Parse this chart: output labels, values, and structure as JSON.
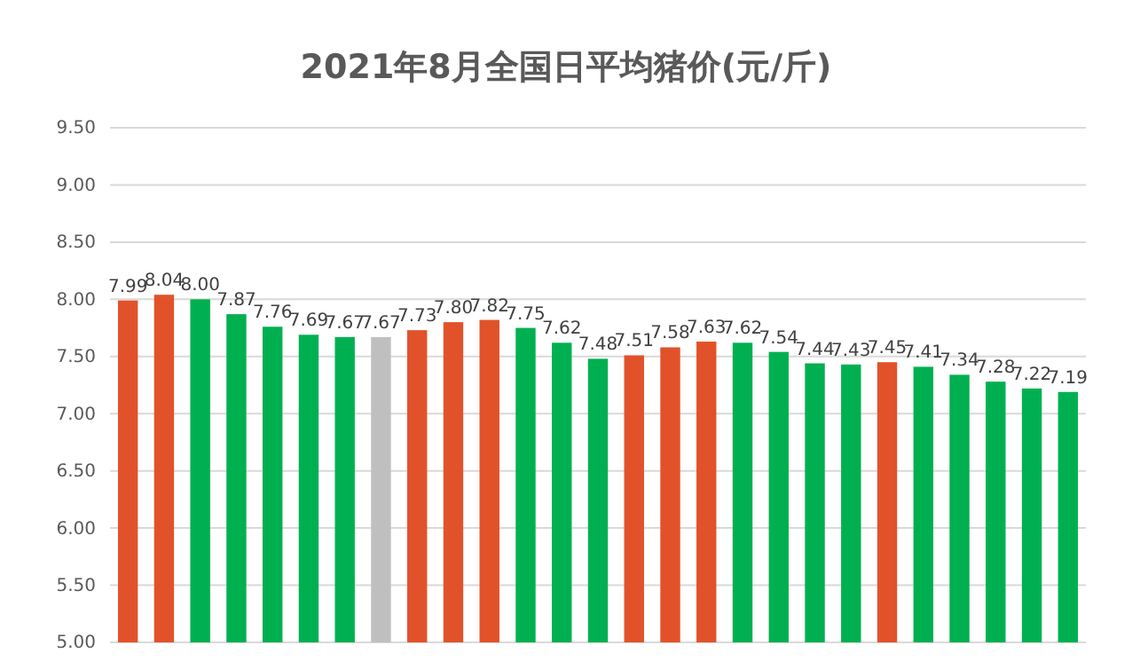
{
  "chart_data": {
    "type": "bar",
    "title": "2021年8月全国日平均猪价(元/斤)",
    "categories": [
      null,
      null,
      null,
      null,
      null,
      null,
      null,
      null,
      null,
      null,
      null,
      null,
      null,
      null,
      null,
      null,
      null,
      null,
      null,
      null,
      null,
      null,
      null,
      null,
      null,
      null,
      null
    ],
    "values": [
      7.99,
      8.04,
      8.0,
      7.87,
      7.76,
      7.69,
      7.67,
      7.67,
      7.73,
      7.8,
      7.82,
      7.75,
      7.62,
      7.48,
      7.51,
      7.58,
      7.63,
      7.62,
      7.54,
      7.44,
      7.43,
      7.45,
      7.41,
      7.34,
      7.28,
      7.22,
      7.19
    ],
    "value_labels": [
      "7.99",
      "8.04",
      "8.00",
      "7.87",
      "7.76",
      "7.69",
      "7.67",
      "7.67",
      "7.73",
      "7.80",
      "7.82",
      "7.75",
      "7.62",
      "7.48",
      "7.51",
      "7.58",
      "7.63",
      "7.62",
      "7.54",
      "7.44",
      "7.43",
      "7.45",
      "7.41",
      "7.34",
      "7.28",
      "7.22",
      "7.19"
    ],
    "colors": [
      "#e2522a",
      "#e2522a",
      "#00b050",
      "#00b050",
      "#00b050",
      "#00b050",
      "#00b050",
      "#bfbfbf",
      "#e2522a",
      "#e2522a",
      "#e2522a",
      "#00b050",
      "#00b050",
      "#00b050",
      "#e2522a",
      "#e2522a",
      "#e2522a",
      "#00b050",
      "#00b050",
      "#00b050",
      "#00b050",
      "#e2522a",
      "#00b050",
      "#00b050",
      "#00b050",
      "#00b050",
      "#00b050"
    ],
    "ylim": [
      5,
      9.5
    ],
    "yticks": [
      {
        "value": 5,
        "label": "5.00"
      },
      {
        "value": 5.5,
        "label": "5.50"
      },
      {
        "value": 6,
        "label": "6.00"
      },
      {
        "value": 6.5,
        "label": "6.50"
      },
      {
        "value": 7,
        "label": "7.00"
      },
      {
        "value": 7.5,
        "label": "7.50"
      },
      {
        "value": 8,
        "label": "8.00"
      },
      {
        "value": 8.5,
        "label": "8.50"
      },
      {
        "value": 9,
        "label": "9.00"
      },
      {
        "value": 9.5,
        "label": "9.50"
      }
    ],
    "grid": "y"
  }
}
